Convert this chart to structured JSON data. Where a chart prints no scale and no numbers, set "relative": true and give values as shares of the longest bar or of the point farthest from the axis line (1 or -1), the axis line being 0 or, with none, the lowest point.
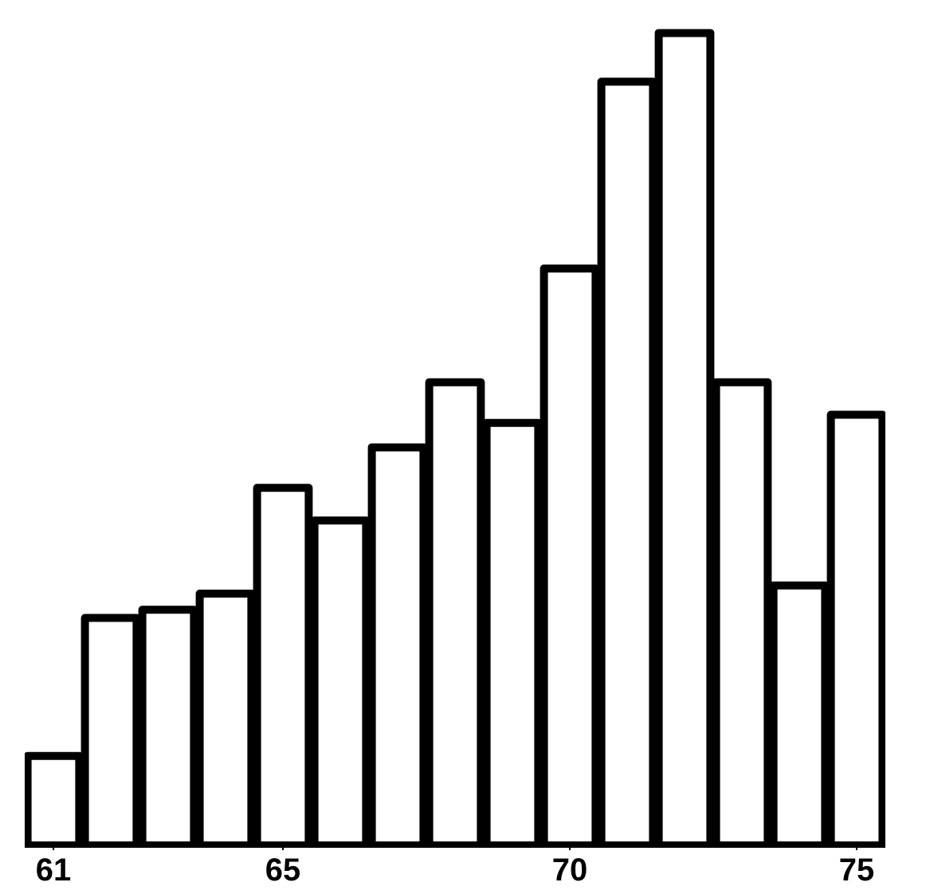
{
  "chart_data": {
    "type": "bar",
    "relative": true,
    "color": "#ffffff",
    "x": [
      61,
      62,
      63,
      64,
      65,
      66,
      67,
      68,
      69,
      70,
      71,
      72,
      73,
      74,
      75
    ],
    "values": [
      0.11,
      0.28,
      0.29,
      0.31,
      0.44,
      0.4,
      0.49,
      0.57,
      0.52,
      0.71,
      0.94,
      1,
      0.57,
      0.32,
      0.53
    ],
    "xlim": [
      60.5,
      75.5
    ],
    "xticks": [
      61,
      65,
      70,
      75
    ],
    "grid": false
  }
}
